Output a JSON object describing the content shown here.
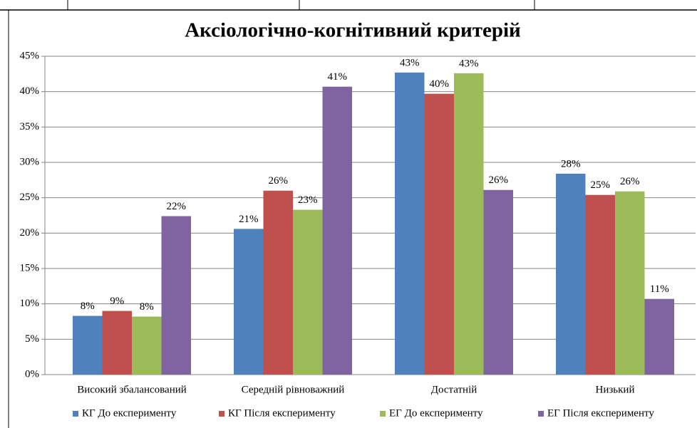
{
  "chart_data": {
    "type": "bar",
    "title": "Аксіологічно-когнітивний критерій",
    "categories": [
      "Високий збалансований",
      "Середній рівноважний",
      "Достатній",
      "Низький"
    ],
    "series": [
      {
        "name": "КГ До експерименту",
        "color": "#4f81bd",
        "values": [
          8.3,
          20.6,
          42.7,
          28.4
        ],
        "value_labels": [
          "8%",
          "21%",
          "43%",
          "28%"
        ]
      },
      {
        "name": "КГ Після експерименту",
        "color": "#c0504d",
        "values": [
          9.0,
          26.0,
          39.7,
          25.4
        ],
        "value_labels": [
          "9%",
          "26%",
          "40%",
          "25%"
        ]
      },
      {
        "name": "ЕГ До експерименту",
        "color": "#9bbb59",
        "values": [
          8.2,
          23.3,
          42.6,
          25.9
        ],
        "value_labels": [
          "8%",
          "23%",
          "43%",
          "26%"
        ]
      },
      {
        "name": "ЕГ Після експерименту",
        "color": "#8064a2",
        "values": [
          22.4,
          40.7,
          26.1,
          10.7
        ],
        "value_labels": [
          "22%",
          "41%",
          "26%",
          "11%"
        ]
      }
    ],
    "ylim": [
      0,
      45
    ],
    "yticks": [
      {
        "value": 0,
        "label": "0%"
      },
      {
        "value": 5,
        "label": "5%"
      },
      {
        "value": 10,
        "label": "10%"
      },
      {
        "value": 15,
        "label": "15%"
      },
      {
        "value": 20,
        "label": "20%"
      },
      {
        "value": 25,
        "label": "25%"
      },
      {
        "value": 30,
        "label": "30%"
      },
      {
        "value": 35,
        "label": "35%"
      },
      {
        "value": 40,
        "label": "40%"
      },
      {
        "value": 45,
        "label": "45%"
      }
    ],
    "grid": true,
    "legend": "bottom"
  }
}
